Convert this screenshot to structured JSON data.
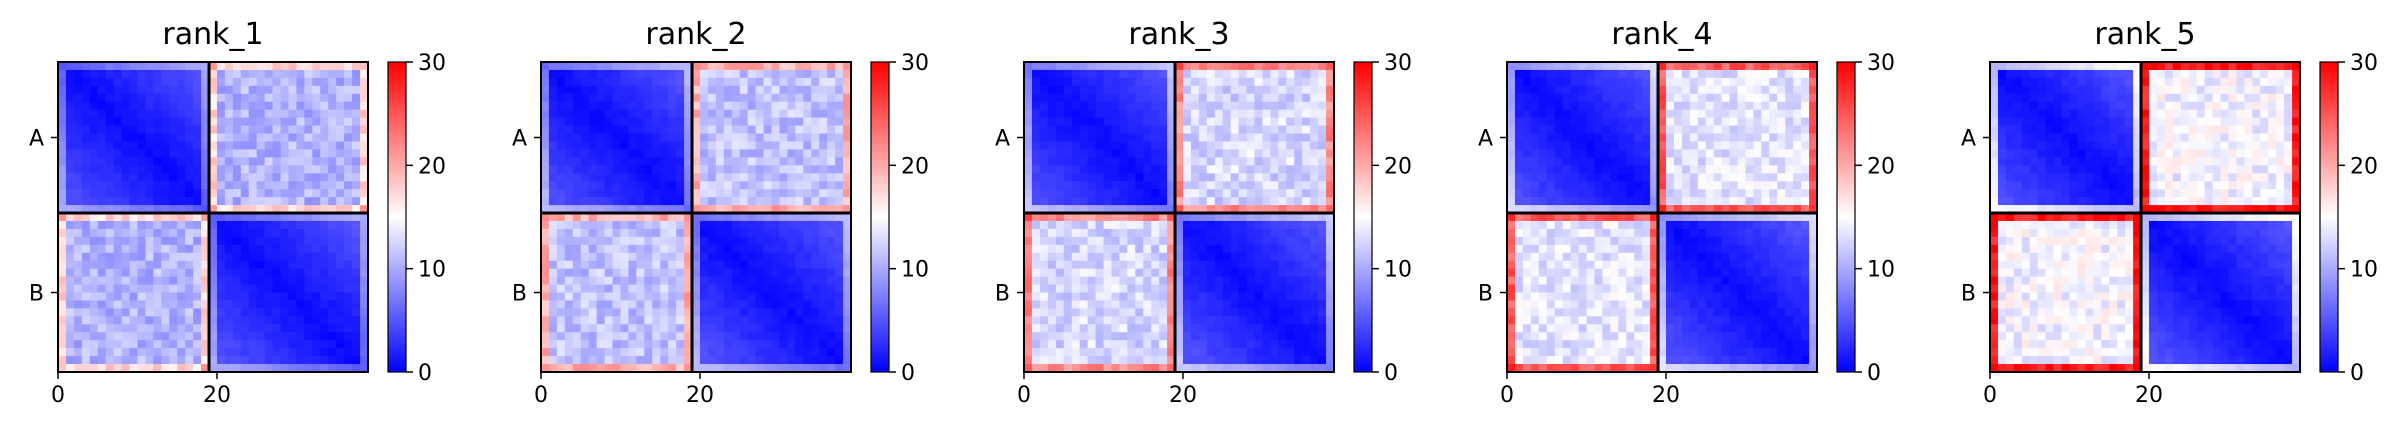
{
  "figure": {
    "colormap": "bwr",
    "colors": {
      "low": "#0000ff",
      "mid": "#ffffff",
      "high": "#ff0000",
      "line": "#000000"
    }
  },
  "chart_data": [
    {
      "type": "heatmap",
      "title": "rank_1",
      "x_ticks": [
        "0",
        "20"
      ],
      "y_tick_labels": [
        "A",
        "B"
      ],
      "n_bins": 39,
      "boundary": 19,
      "xlim": [
        0,
        39
      ],
      "ylim": [
        0,
        39
      ],
      "colorbar": {
        "ticks": [
          "0",
          "10",
          "20",
          "30"
        ],
        "range": [
          0,
          30
        ]
      },
      "off_block_level": 0.35,
      "edge_boost": 0.45,
      "grid": false
    },
    {
      "type": "heatmap",
      "title": "rank_2",
      "x_ticks": [
        "0",
        "20"
      ],
      "y_tick_labels": [
        "A",
        "B"
      ],
      "n_bins": 39,
      "boundary": 19,
      "xlim": [
        0,
        39
      ],
      "ylim": [
        0,
        39
      ],
      "colorbar": {
        "ticks": [
          "0",
          "10",
          "20",
          "30"
        ],
        "range": [
          0,
          30
        ]
      },
      "off_block_level": 0.38,
      "edge_boost": 0.55,
      "grid": false
    },
    {
      "type": "heatmap",
      "title": "rank_3",
      "x_ticks": [
        "0",
        "20"
      ],
      "y_tick_labels": [
        "A",
        "B"
      ],
      "n_bins": 39,
      "boundary": 19,
      "xlim": [
        0,
        39
      ],
      "ylim": [
        0,
        39
      ],
      "colorbar": {
        "ticks": [
          "0",
          "10",
          "20",
          "30"
        ],
        "range": [
          0,
          30
        ]
      },
      "off_block_level": 0.42,
      "edge_boost": 0.62,
      "grid": false
    },
    {
      "type": "heatmap",
      "title": "rank_4",
      "x_ticks": [
        "0",
        "20"
      ],
      "y_tick_labels": [
        "A",
        "B"
      ],
      "n_bins": 39,
      "boundary": 19,
      "xlim": [
        0,
        39
      ],
      "ylim": [
        0,
        39
      ],
      "colorbar": {
        "ticks": [
          "0",
          "10",
          "20",
          "30"
        ],
        "range": [
          0,
          30
        ]
      },
      "off_block_level": 0.45,
      "edge_boost": 0.75,
      "grid": false
    },
    {
      "type": "heatmap",
      "title": "rank_5",
      "x_ticks": [
        "0",
        "20"
      ],
      "y_tick_labels": [
        "A",
        "B"
      ],
      "n_bins": 39,
      "boundary": 19,
      "xlim": [
        0,
        39
      ],
      "ylim": [
        0,
        39
      ],
      "colorbar": {
        "ticks": [
          "0",
          "10",
          "20",
          "30"
        ],
        "range": [
          0,
          30
        ]
      },
      "off_block_level": 0.48,
      "edge_boost": 0.95,
      "grid": false
    }
  ]
}
